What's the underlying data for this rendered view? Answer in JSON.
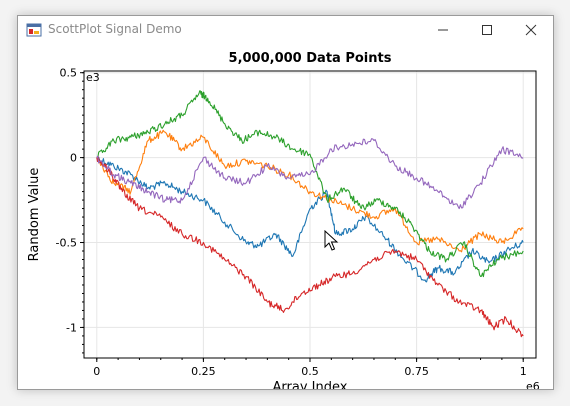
{
  "window": {
    "title": "ScottPlot Signal Demo",
    "controls": {
      "minimize_icon": "minimize-icon",
      "maximize_icon": "maximize-icon",
      "close_icon": "close-icon"
    }
  },
  "chart_data": {
    "type": "line",
    "title": "5,000,000 Data Points",
    "xlabel": "Array Index",
    "ylabel": "Random Value",
    "x_multiplier": "e6",
    "y_multiplier": "e3",
    "xlim": [
      -0.03,
      1.03
    ],
    "ylim": [
      -1.18,
      0.51
    ],
    "x_ticks": [
      0,
      0.25,
      0.5,
      0.75,
      1
    ],
    "x_tick_labels": [
      "0",
      "0.25",
      "0.5",
      "0.75",
      "1"
    ],
    "y_ticks": [
      0.5,
      0,
      -0.5,
      -1
    ],
    "y_tick_labels": [
      "0.5",
      "0",
      "-0.5",
      "-1"
    ],
    "grid": true,
    "series": [
      {
        "color": "#1f77b4",
        "x": [
          0,
          0.04,
          0.08,
          0.12,
          0.16,
          0.2,
          0.25,
          0.3,
          0.35,
          0.38,
          0.42,
          0.46,
          0.5,
          0.54,
          0.56,
          0.6,
          0.63,
          0.68,
          0.72,
          0.77,
          0.8,
          0.84,
          0.88,
          0.92,
          0.96,
          1
        ],
        "y": [
          0,
          -0.05,
          -0.1,
          -0.18,
          -0.15,
          -0.2,
          -0.25,
          -0.38,
          -0.5,
          -0.52,
          -0.45,
          -0.58,
          -0.3,
          -0.2,
          -0.45,
          -0.42,
          -0.35,
          -0.48,
          -0.6,
          -0.72,
          -0.65,
          -0.68,
          -0.55,
          -0.62,
          -0.55,
          -0.5
        ]
      },
      {
        "color": "#ff7f0e",
        "x": [
          0,
          0.04,
          0.08,
          0.12,
          0.16,
          0.2,
          0.25,
          0.3,
          0.35,
          0.4,
          0.45,
          0.5,
          0.55,
          0.6,
          0.65,
          0.7,
          0.75,
          0.8,
          0.85,
          0.9,
          0.95,
          1
        ],
        "y": [
          0,
          -0.15,
          -0.2,
          0.1,
          0.15,
          0.05,
          0.12,
          -0.05,
          -0.02,
          -0.05,
          -0.1,
          -0.2,
          -0.25,
          -0.3,
          -0.35,
          -0.3,
          -0.5,
          -0.48,
          -0.55,
          -0.45,
          -0.5,
          -0.42
        ]
      },
      {
        "color": "#2ca02c",
        "x": [
          0,
          0.04,
          0.08,
          0.12,
          0.16,
          0.2,
          0.24,
          0.26,
          0.3,
          0.34,
          0.38,
          0.42,
          0.46,
          0.5,
          0.54,
          0.58,
          0.62,
          0.66,
          0.7,
          0.74,
          0.78,
          0.82,
          0.86,
          0.9,
          0.94,
          1
        ],
        "y": [
          0,
          0.1,
          0.12,
          0.15,
          0.2,
          0.25,
          0.38,
          0.35,
          0.2,
          0.1,
          0.15,
          0.12,
          0.05,
          0.02,
          -0.25,
          -0.18,
          -0.3,
          -0.25,
          -0.3,
          -0.4,
          -0.55,
          -0.6,
          -0.5,
          -0.7,
          -0.6,
          -0.55
        ]
      },
      {
        "color": "#d62728",
        "x": [
          0,
          0.03,
          0.06,
          0.1,
          0.15,
          0.2,
          0.25,
          0.3,
          0.35,
          0.4,
          0.44,
          0.48,
          0.52,
          0.56,
          0.6,
          0.65,
          0.7,
          0.75,
          0.8,
          0.85,
          0.9,
          0.93,
          0.96,
          1
        ],
        "y": [
          0,
          -0.08,
          -0.2,
          -0.3,
          -0.35,
          -0.45,
          -0.5,
          -0.6,
          -0.7,
          -0.85,
          -0.9,
          -0.8,
          -0.75,
          -0.7,
          -0.68,
          -0.6,
          -0.55,
          -0.6,
          -0.75,
          -0.85,
          -0.9,
          -1.0,
          -0.95,
          -1.05
        ]
      },
      {
        "color": "#9467bd",
        "x": [
          0,
          0.04,
          0.08,
          0.12,
          0.16,
          0.2,
          0.25,
          0.3,
          0.35,
          0.4,
          0.45,
          0.5,
          0.55,
          0.6,
          0.65,
          0.7,
          0.75,
          0.8,
          0.85,
          0.9,
          0.95,
          1
        ],
        "y": [
          0,
          -0.1,
          -0.15,
          -0.2,
          -0.25,
          -0.25,
          0.0,
          -0.12,
          -0.15,
          -0.05,
          -0.12,
          -0.1,
          0.05,
          0.08,
          0.1,
          -0.05,
          -0.12,
          -0.2,
          -0.3,
          -0.15,
          0.05,
          0.0
        ]
      }
    ]
  }
}
